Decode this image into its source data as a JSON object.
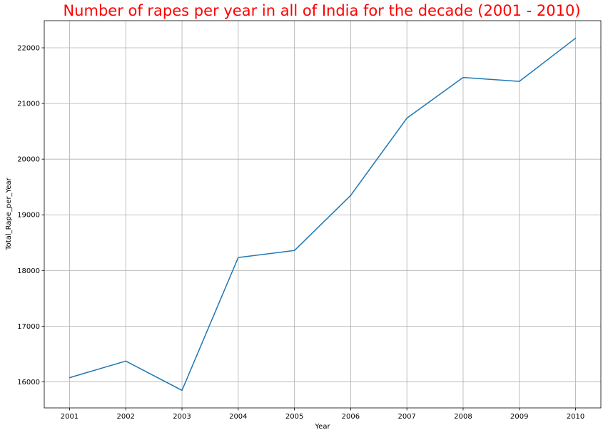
{
  "chart_data": {
    "type": "line",
    "title": "Number of rapes per year in all of India for the decade (2001 - 2010)",
    "xlabel": "Year",
    "ylabel": "Total_Rape_per_Year",
    "x": [
      2001,
      2002,
      2003,
      2004,
      2005,
      2006,
      2007,
      2008,
      2009,
      2010
    ],
    "xticks": [
      "2001",
      "2002",
      "2003",
      "2004",
      "2005",
      "2006",
      "2007",
      "2008",
      "2009",
      "2010"
    ],
    "yticks": [
      "16000",
      "17000",
      "18000",
      "19000",
      "20000",
      "21000",
      "22000"
    ],
    "series": [
      {
        "values": [
          16075,
          16373,
          15847,
          18233,
          18359,
          19348,
          20737,
          21467,
          21397,
          22172
        ],
        "color": "#1f77b4"
      }
    ],
    "xlim": [
      2000.55,
      2010.45
    ],
    "ylim": [
      15532,
      22487
    ],
    "grid": true,
    "title_color": "#ff0000"
  }
}
